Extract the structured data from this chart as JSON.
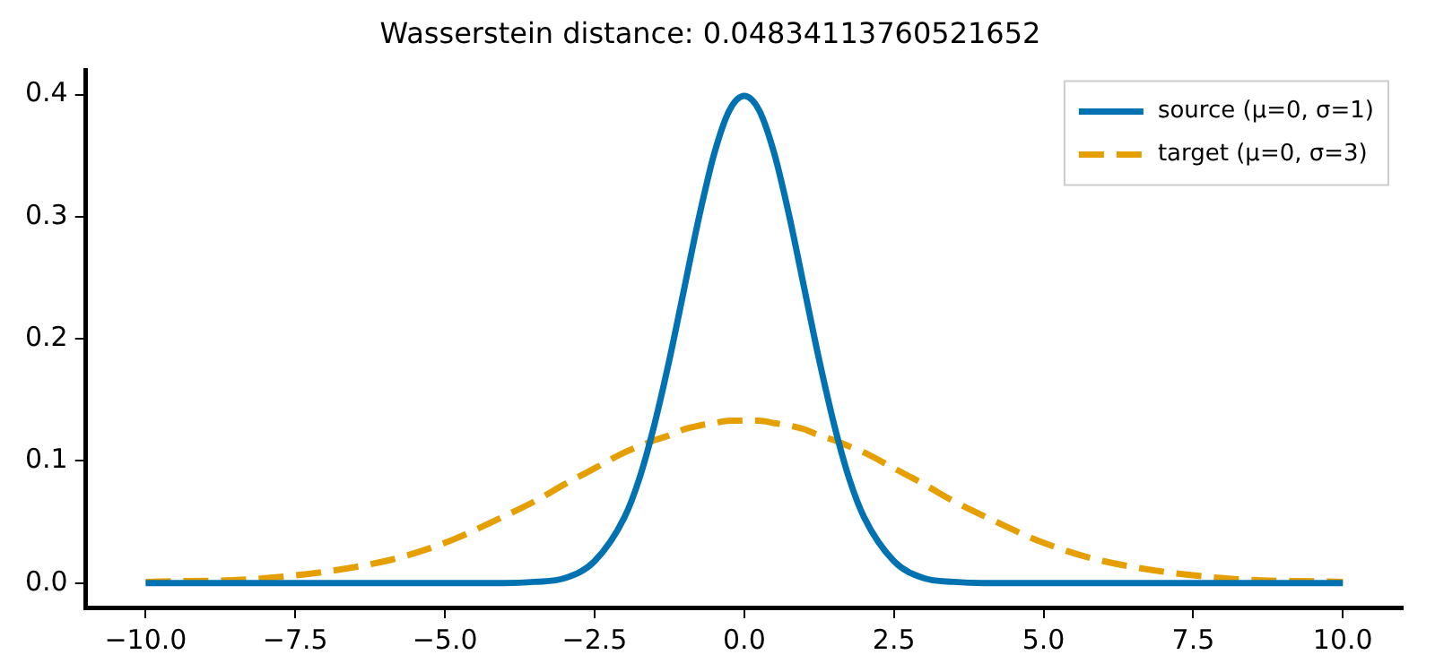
{
  "chart_data": {
    "type": "line",
    "title": "Wasserstein distance: 0.04834113760521652",
    "x": [
      -10,
      -8,
      -6,
      -5,
      -4,
      -3.5,
      -3,
      -2.5,
      -2,
      -1.75,
      -1.5,
      -1.25,
      -1,
      -0.75,
      -0.5,
      -0.25,
      0,
      0.25,
      0.5,
      0.75,
      1,
      1.25,
      1.5,
      1.75,
      2,
      2.5,
      3,
      3.5,
      4,
      5,
      6,
      8,
      10
    ],
    "series": [
      {
        "name": "source (μ=0, σ=1)",
        "color": "#0072b2",
        "line_style": "solid",
        "values": [
          0,
          0,
          0,
          0,
          0,
          0.001,
          0.004,
          0.018,
          0.054,
          0.086,
          0.13,
          0.183,
          0.242,
          0.301,
          0.352,
          0.387,
          0.399,
          0.387,
          0.352,
          0.301,
          0.242,
          0.183,
          0.13,
          0.086,
          0.054,
          0.018,
          0.004,
          0.001,
          0,
          0,
          0,
          0,
          0
        ]
      },
      {
        "name": "target (μ=0, σ=3)",
        "color": "#e69f00",
        "line_style": "dashed",
        "values": [
          0.001,
          0.004,
          0.018,
          0.033,
          0.055,
          0.067,
          0.081,
          0.094,
          0.107,
          0.112,
          0.117,
          0.121,
          0.126,
          0.129,
          0.131,
          0.133,
          0.133,
          0.133,
          0.131,
          0.129,
          0.126,
          0.121,
          0.117,
          0.112,
          0.107,
          0.094,
          0.081,
          0.067,
          0.055,
          0.033,
          0.018,
          0.004,
          0.001
        ]
      }
    ],
    "xlim": [
      -11,
      11
    ],
    "xticks": [
      {
        "value": -10,
        "label": "−10.0"
      },
      {
        "value": -7.5,
        "label": "−7.5"
      },
      {
        "value": -5,
        "label": "−5.0"
      },
      {
        "value": -2.5,
        "label": "−2.5"
      },
      {
        "value": 0,
        "label": "0.0"
      },
      {
        "value": 2.5,
        "label": "2.5"
      },
      {
        "value": 5,
        "label": "5.0"
      },
      {
        "value": 7.5,
        "label": "7.5"
      },
      {
        "value": 10,
        "label": "10.0"
      }
    ],
    "ylim": [
      -0.02,
      0.42
    ],
    "yticks": [
      {
        "value": 0,
        "label": "0.0"
      },
      {
        "value": 0.1,
        "label": "0.1"
      },
      {
        "value": 0.2,
        "label": "0.2"
      },
      {
        "value": 0.3,
        "label": "0.3"
      },
      {
        "value": 0.4,
        "label": "0.4"
      }
    ],
    "grid": false,
    "legend": "top right"
  }
}
